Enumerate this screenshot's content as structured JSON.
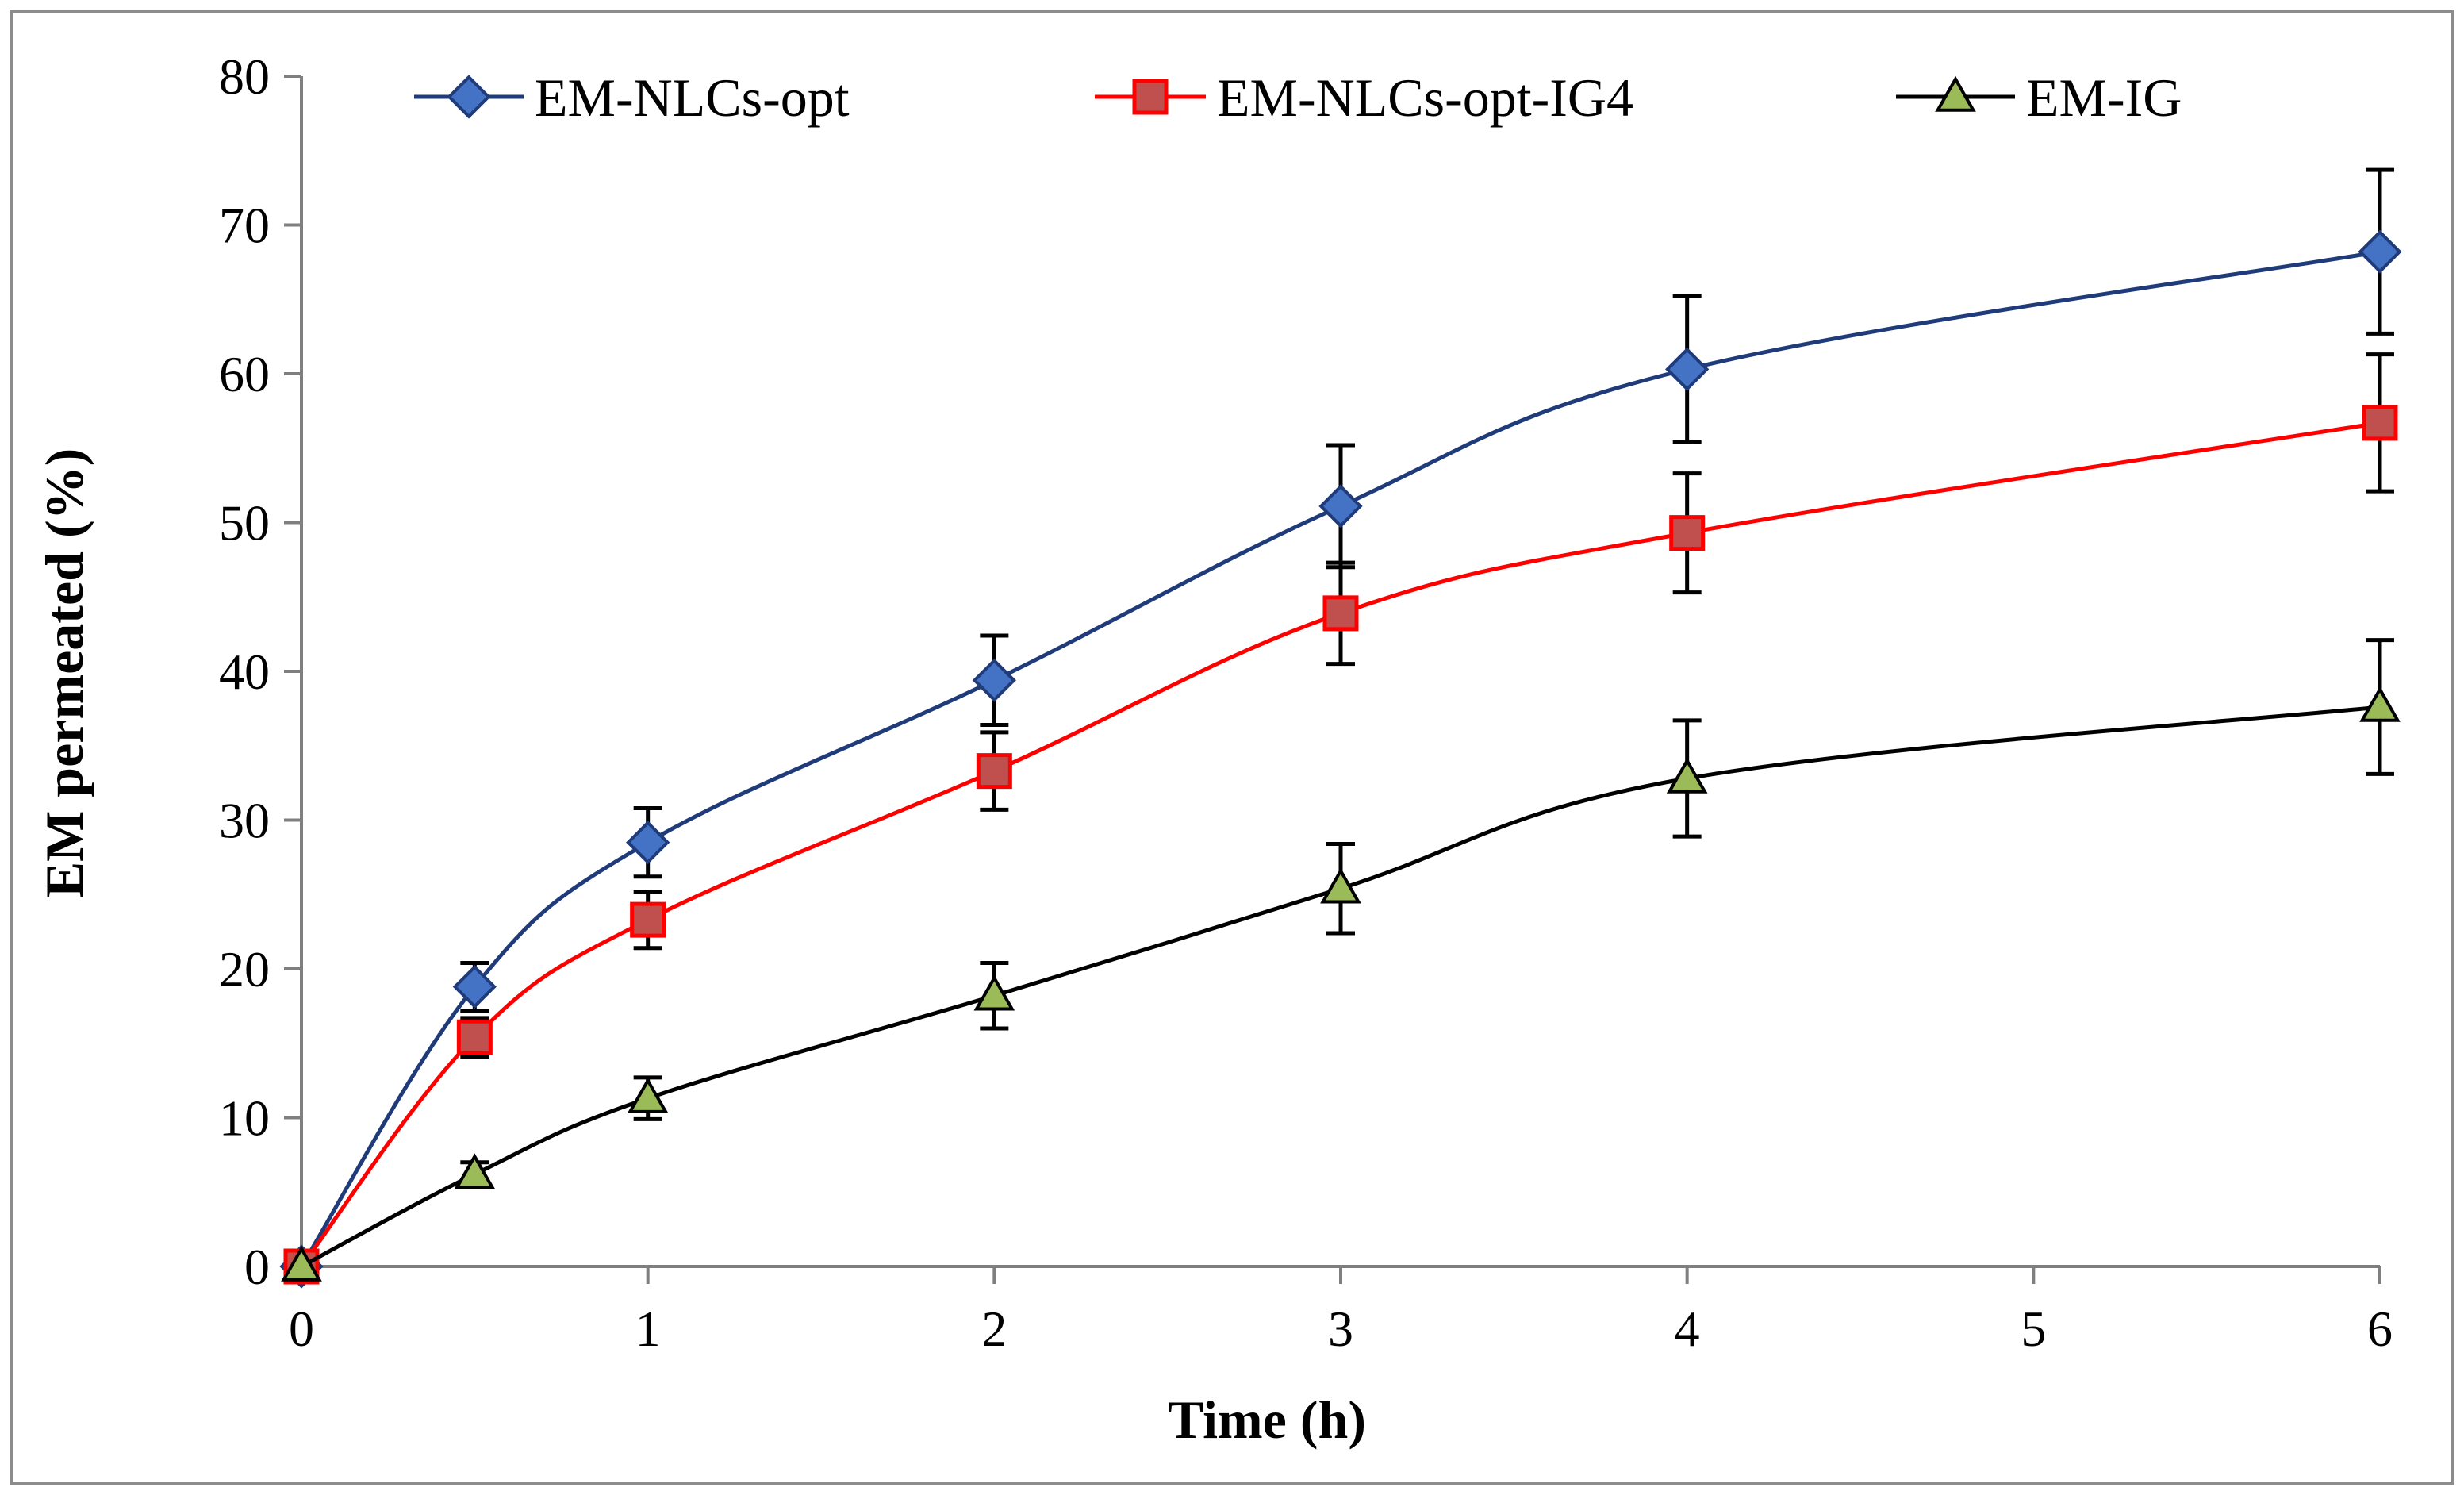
{
  "chart_data": {
    "type": "line",
    "title": "",
    "xlabel": "Time (h)",
    "ylabel": "EM permeated (%)",
    "xlim": [
      0,
      6
    ],
    "ylim": [
      0,
      80
    ],
    "xticks": [
      0,
      1,
      2,
      3,
      4,
      5,
      6
    ],
    "yticks": [
      0,
      10,
      20,
      30,
      40,
      50,
      60,
      70,
      80
    ],
    "grid": false,
    "legend_position": "top",
    "series": [
      {
        "name": "EM-NLCs-opt",
        "color": "#1f3b7a",
        "marker_fill": "#4472c4",
        "marker": "diamond",
        "x": [
          0,
          0.5,
          1,
          2,
          3,
          4,
          6
        ],
        "y": [
          0,
          18.8,
          28.5,
          39.4,
          51.1,
          60.3,
          68.2
        ],
        "error": [
          0,
          1.6,
          2.3,
          3.0,
          4.1,
          4.9,
          5.5
        ]
      },
      {
        "name": "EM-NLCs-opt-IG4",
        "color": "#ff0000",
        "marker_fill": "#c0504d",
        "marker": "square",
        "x": [
          0,
          0.5,
          1,
          2,
          3,
          4,
          6
        ],
        "y": [
          0,
          15.4,
          23.3,
          33.3,
          43.9,
          49.3,
          56.7
        ],
        "error": [
          0,
          1.3,
          1.9,
          2.6,
          3.4,
          4.0,
          4.6
        ]
      },
      {
        "name": "EM-IG",
        "color": "#000000",
        "marker_fill": "#9bbb59",
        "marker": "triangle",
        "x": [
          0,
          0.5,
          1,
          2,
          3,
          4,
          6
        ],
        "y": [
          0,
          6.2,
          11.3,
          18.2,
          25.4,
          32.8,
          37.6
        ],
        "error": [
          0,
          0.8,
          1.4,
          2.2,
          3.0,
          3.9,
          4.5
        ]
      }
    ]
  }
}
